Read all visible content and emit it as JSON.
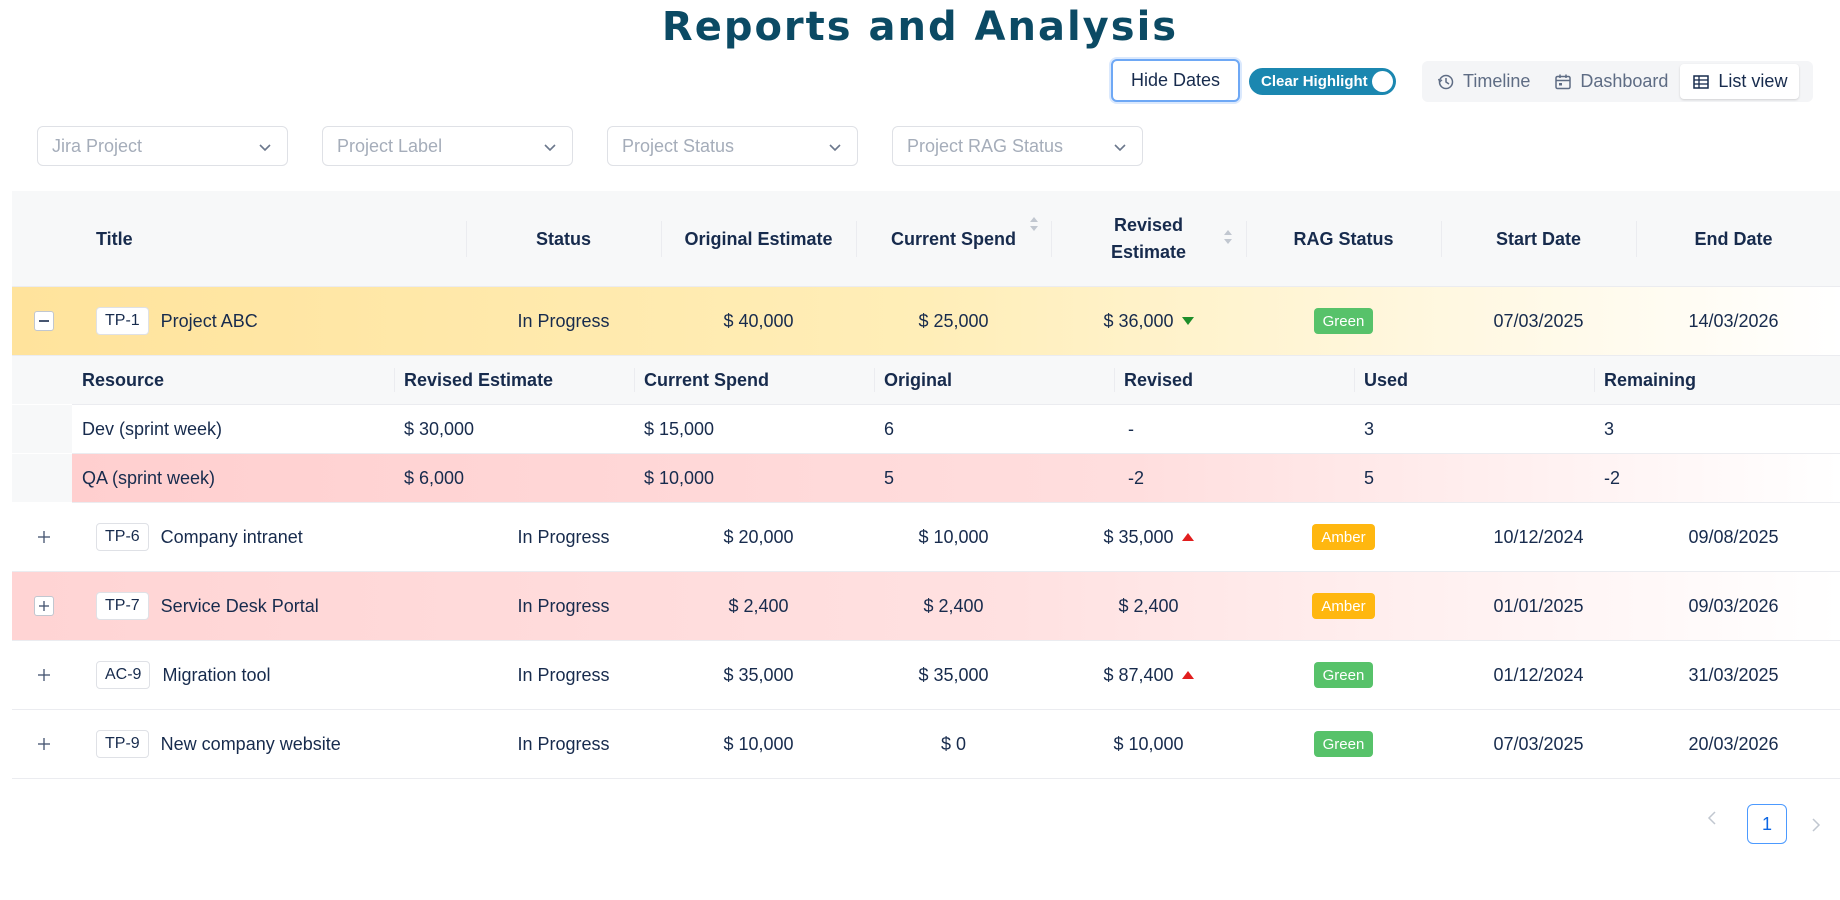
{
  "page": {
    "title": "Reports and Analysis"
  },
  "toolbar": {
    "hide_dates_label": "Hide Dates",
    "clear_highlight_label": "Clear Highlight",
    "clear_highlight_on": true,
    "views": [
      {
        "label": "Timeline",
        "icon": "history-icon",
        "active": false
      },
      {
        "label": "Dashboard",
        "icon": "calendar-icon",
        "active": false
      },
      {
        "label": "List view",
        "icon": "table-icon",
        "active": true
      }
    ]
  },
  "filters": [
    {
      "placeholder": "Jira Project"
    },
    {
      "placeholder": "Project Label"
    },
    {
      "placeholder": "Project Status"
    },
    {
      "placeholder": "Project RAG Status"
    }
  ],
  "table": {
    "headers": {
      "title": "Title",
      "status": "Status",
      "original_estimate": "Original Estimate",
      "current_spend": "Current Spend",
      "revised_estimate": "Revised Estimate",
      "rag_status": "RAG Status",
      "start_date": "Start Date",
      "end_date": "End Date"
    },
    "rows": [
      {
        "key": "TP-1",
        "title": "Project ABC",
        "status": "In Progress",
        "original_estimate": "$ 40,000",
        "current_spend": "$ 25,000",
        "revised_estimate": "$ 36,000",
        "trend": "down",
        "rag": "Green",
        "start_date": "07/03/2025",
        "end_date": "14/03/2026",
        "expanded": true,
        "highlight": "yellow"
      },
      {
        "key": "TP-6",
        "title": "Company intranet",
        "status": "In Progress",
        "original_estimate": "$ 20,000",
        "current_spend": "$ 10,000",
        "revised_estimate": "$ 35,000",
        "trend": "up",
        "rag": "Amber",
        "start_date": "10/12/2024",
        "end_date": "09/08/2025",
        "expanded": false,
        "highlight": "none"
      },
      {
        "key": "TP-7",
        "title": "Service Desk Portal",
        "status": "In Progress",
        "original_estimate": "$ 2,400",
        "current_spend": "$ 2,400",
        "revised_estimate": "$ 2,400",
        "trend": "none",
        "rag": "Amber",
        "start_date": "01/01/2025",
        "end_date": "09/03/2026",
        "expanded": false,
        "highlight": "red"
      },
      {
        "key": "AC-9",
        "title": "Migration tool",
        "status": "In Progress",
        "original_estimate": "$ 35,000",
        "current_spend": "$ 35,000",
        "revised_estimate": "$ 87,400",
        "trend": "up",
        "rag": "Green",
        "start_date": "01/12/2024",
        "end_date": "31/03/2025",
        "expanded": false,
        "highlight": "none"
      },
      {
        "key": "TP-9",
        "title": "New company website",
        "status": "In Progress",
        "original_estimate": "$ 10,000",
        "current_spend": "$ 0",
        "revised_estimate": "$ 10,000",
        "trend": "none",
        "rag": "Green",
        "start_date": "07/03/2025",
        "end_date": "20/03/2026",
        "expanded": false,
        "highlight": "none"
      }
    ],
    "subtable": {
      "headers": {
        "resource": "Resource",
        "revised_estimate": "Revised Estimate",
        "current_spend": "Current Spend",
        "original": "Original",
        "revised": "Revised",
        "used": "Used",
        "remaining": "Remaining"
      },
      "rows": [
        {
          "resource": "Dev (sprint week)",
          "revised_estimate": "$ 30,000",
          "current_spend": "$ 15,000",
          "original": "6",
          "revised": "-",
          "used": "3",
          "remaining": "3",
          "highlight": "none"
        },
        {
          "resource": "QA (sprint week)",
          "revised_estimate": "$ 6,000",
          "current_spend": "$ 10,000",
          "original": "5",
          "revised": "-2",
          "used": "5",
          "remaining": "-2",
          "highlight": "red"
        }
      ]
    }
  },
  "colors": {
    "green_badge": "#57c26a",
    "amber_badge": "#ffb70f",
    "title": "#0b4a64",
    "toggle": "#1b87b0"
  },
  "pagination": {
    "current_page": "1"
  }
}
